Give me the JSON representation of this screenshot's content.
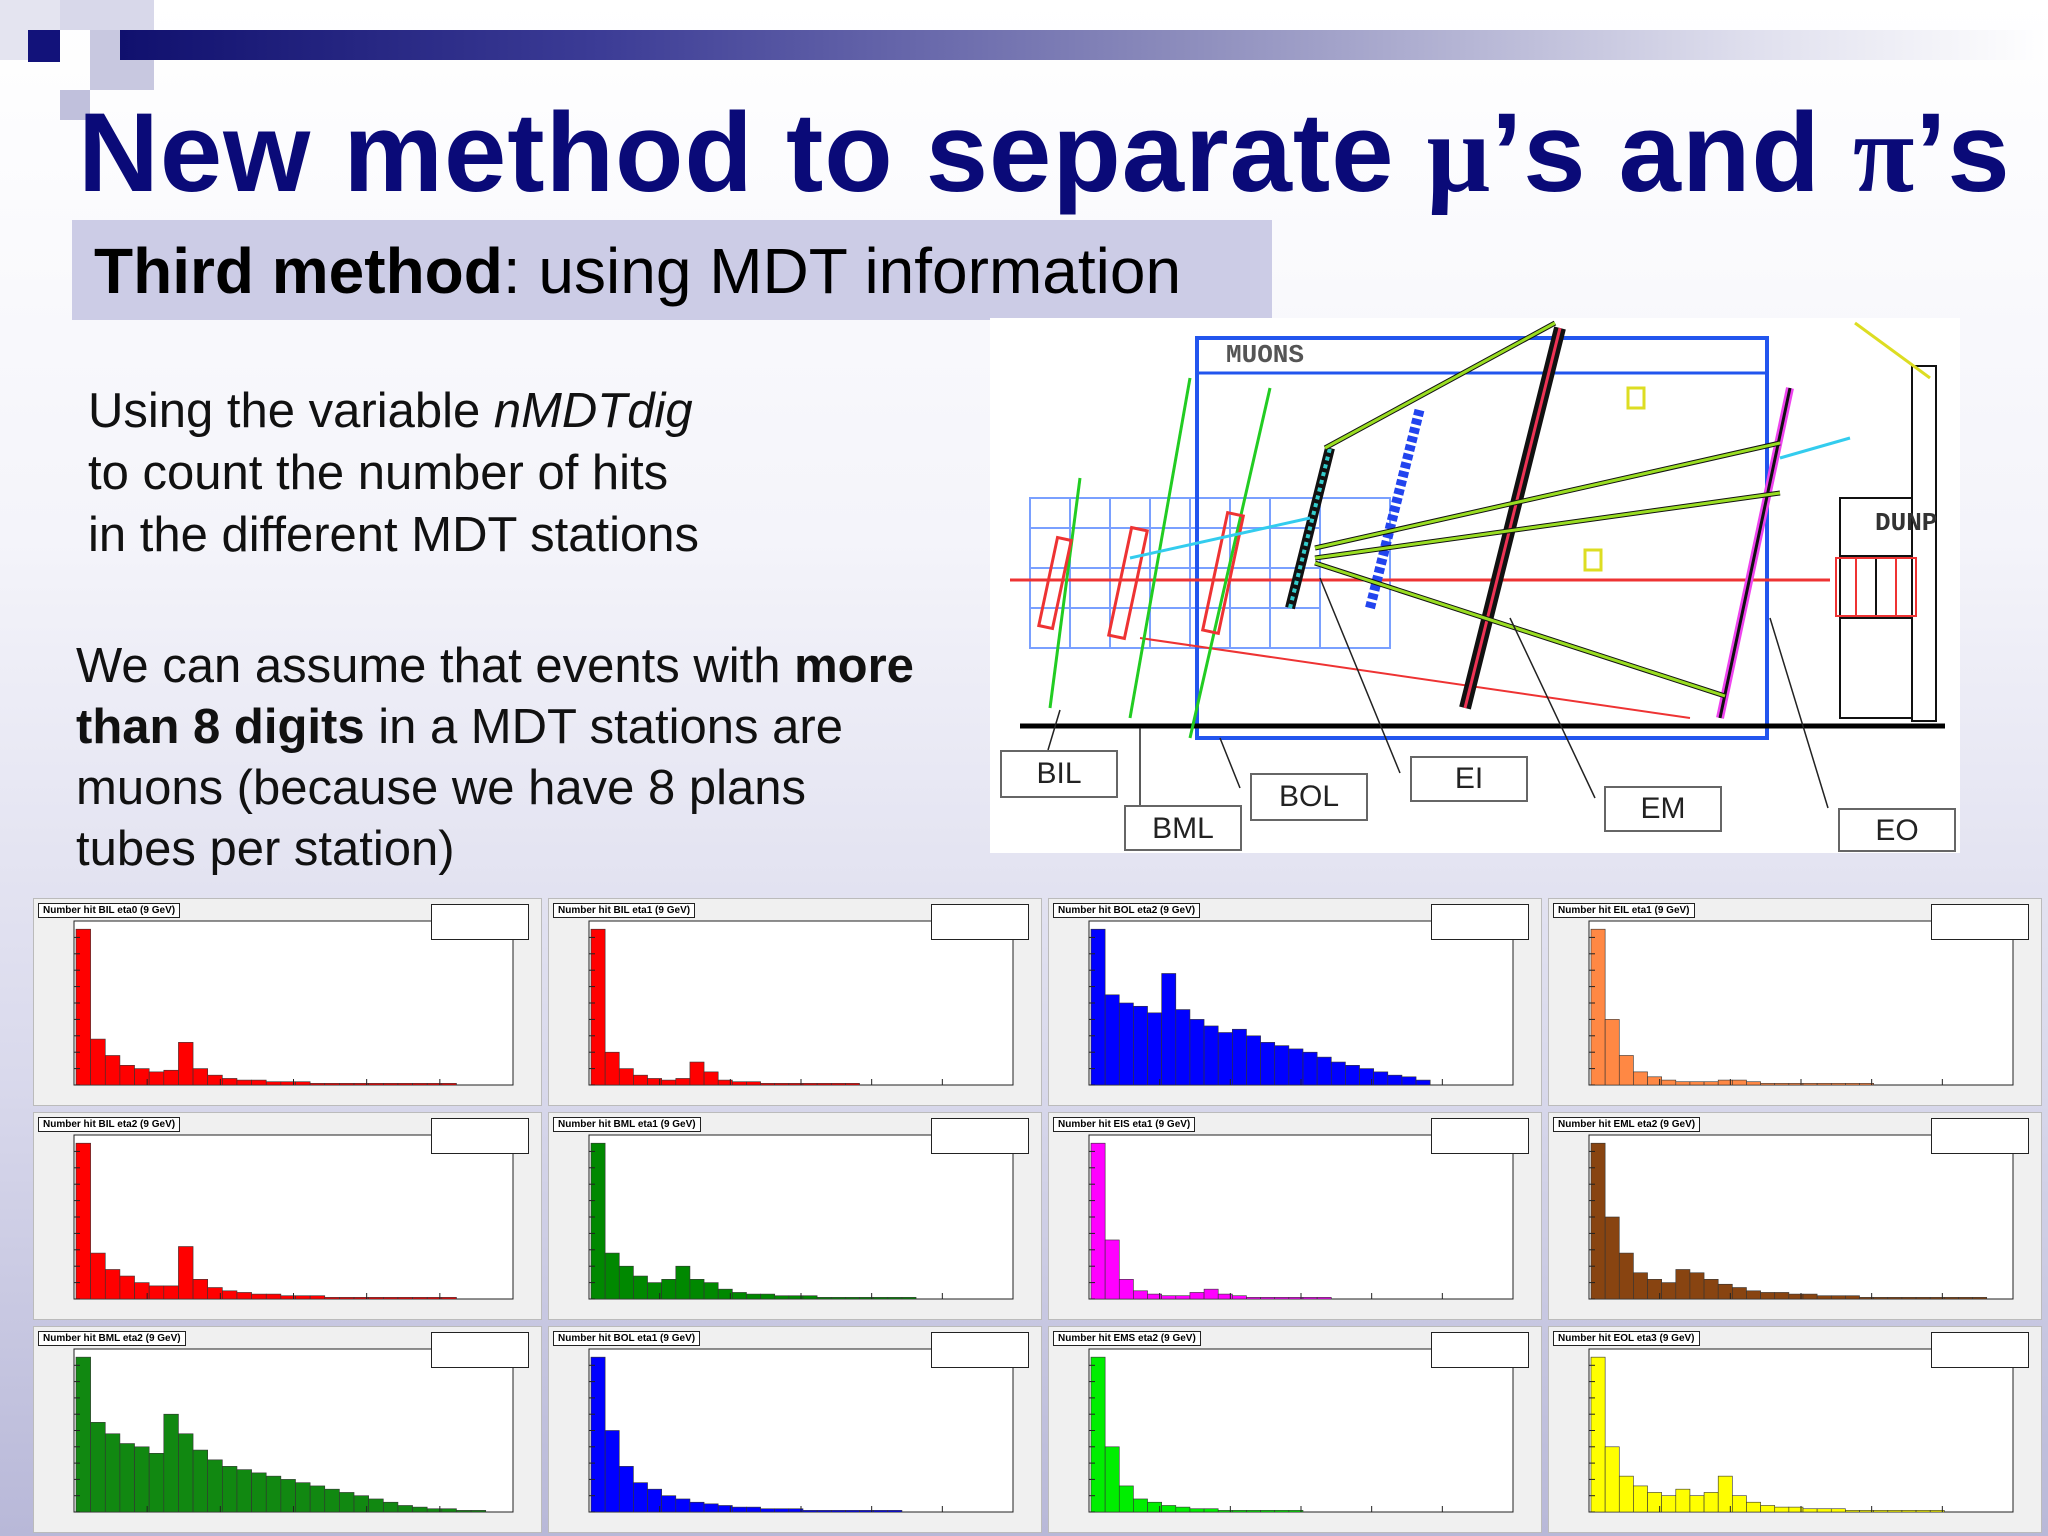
{
  "slide": {
    "title_main": "New method to separate ",
    "title_mu": "μ",
    "title_mid": "’s and ",
    "title_pi": "π",
    "title_end": "’s",
    "subtitle_bold": "Third method",
    "subtitle_rest": ": using MDT information",
    "para1_a": "Using the variable ",
    "para1_var": "nMDTdig",
    "para1_b": "to count the number of hits",
    "para1_c": "in the different MDT stations",
    "para2_a": "We can assume that events with ",
    "para2_bold1": "more",
    "para2_bold2": "than 8 digits",
    "para2_b": " in a MDT stations are",
    "para2_c": "muons (because we have 8 plans",
    "para2_d": "tubes per station)"
  },
  "diagram": {
    "muons_label": "MUONS",
    "dunp_label": "DUNP",
    "labels": [
      "BIL",
      "BML",
      "BOL",
      "EI",
      "EM",
      "EO"
    ]
  },
  "histograms": [
    {
      "title": "Number hit BIL eta0 (9 GeV)",
      "color": "#ff0000",
      "values": [
        95,
        28,
        18,
        12,
        10,
        8,
        9,
        26,
        10,
        6,
        4,
        3,
        3,
        2,
        2,
        2,
        1,
        1,
        1,
        1,
        1,
        1,
        1,
        1,
        1,
        1,
        0,
        0,
        0,
        0
      ]
    },
    {
      "title": "Number hit BIL eta1 (9 GeV)",
      "color": "#ff0000",
      "values": [
        95,
        20,
        10,
        6,
        4,
        3,
        4,
        14,
        8,
        3,
        2,
        2,
        1,
        1,
        1,
        1,
        1,
        1,
        1,
        0,
        0,
        0,
        0,
        0,
        0,
        0,
        0,
        0,
        0,
        0
      ]
    },
    {
      "title": "Number hit BOL eta2 (9 GeV)",
      "color": "#0000ff",
      "values": [
        95,
        55,
        50,
        48,
        44,
        68,
        46,
        40,
        36,
        32,
        34,
        30,
        26,
        24,
        22,
        20,
        17,
        14,
        12,
        10,
        8,
        6,
        5,
        3
      ]
    },
    {
      "title": "Number hit EIL eta1 (9 GeV)",
      "color": "#ff8844",
      "values": [
        95,
        40,
        18,
        8,
        5,
        3,
        2,
        2,
        2,
        3,
        3,
        2,
        1,
        1,
        1,
        1,
        1,
        1,
        1,
        1,
        0,
        0,
        0,
        0,
        0,
        0
      ]
    },
    {
      "title": "Number hit BIL eta2 (9 GeV)",
      "color": "#ff0000",
      "values": [
        95,
        28,
        18,
        14,
        10,
        8,
        8,
        32,
        12,
        7,
        5,
        4,
        3,
        3,
        2,
        2,
        2,
        1,
        1,
        1,
        1,
        1,
        1,
        1,
        1,
        1,
        0,
        0,
        0,
        0
      ]
    },
    {
      "title": "Number hit BML eta1 (9 GeV)",
      "color": "#008800",
      "values": [
        95,
        28,
        20,
        14,
        10,
        12,
        20,
        12,
        10,
        6,
        4,
        3,
        3,
        2,
        2,
        2,
        1,
        1,
        1,
        1,
        1,
        1,
        1,
        0,
        0,
        0,
        0,
        0,
        0,
        0
      ]
    },
    {
      "title": "Number hit EIS eta1 (9 GeV)",
      "color": "#ff00ff",
      "values": [
        95,
        36,
        12,
        5,
        3,
        2,
        2,
        4,
        6,
        3,
        2,
        1,
        1,
        1,
        1,
        1,
        1,
        0,
        0,
        0,
        0,
        0,
        0,
        0,
        0,
        0,
        0,
        0
      ]
    },
    {
      "title": "Number hit EML eta2 (9 GeV)",
      "color": "#884411",
      "values": [
        95,
        50,
        28,
        16,
        12,
        10,
        18,
        16,
        12,
        9,
        7,
        5,
        4,
        4,
        3,
        3,
        2,
        2,
        2,
        1,
        1,
        1,
        1,
        1,
        1,
        1,
        1,
        1,
        0,
        0
      ]
    },
    {
      "title": "Number hit BML eta2 (9 GeV)",
      "color": "#118811",
      "values": [
        95,
        55,
        48,
        42,
        40,
        36,
        60,
        48,
        38,
        32,
        28,
        26,
        24,
        22,
        20,
        18,
        16,
        14,
        12,
        10,
        8,
        6,
        4,
        3,
        2,
        2,
        1,
        1,
        0,
        0
      ]
    },
    {
      "title": "Number hit BOL eta1 (9 GeV)",
      "color": "#0000ff",
      "values": [
        95,
        50,
        28,
        18,
        14,
        10,
        8,
        6,
        5,
        4,
        3,
        3,
        2,
        2,
        2,
        1,
        1,
        1,
        1,
        1,
        1,
        1,
        0,
        0,
        0,
        0,
        0,
        0,
        0,
        0
      ]
    },
    {
      "title": "Number hit EMS eta2 (9 GeV)",
      "color": "#00ee00",
      "values": [
        95,
        40,
        16,
        8,
        6,
        4,
        3,
        2,
        2,
        1,
        1,
        1,
        1,
        1,
        1,
        0,
        0,
        0,
        0,
        0,
        0,
        0,
        0,
        0,
        0,
        0,
        0,
        0
      ]
    },
    {
      "title": "Number hit EOL eta3 (9 GeV)",
      "color": "#ffff00",
      "values": [
        95,
        40,
        22,
        16,
        12,
        10,
        14,
        10,
        12,
        22,
        10,
        6,
        4,
        3,
        3,
        2,
        2,
        2,
        1,
        1,
        1,
        1,
        1,
        1,
        1,
        0,
        0,
        0,
        0,
        0
      ]
    }
  ]
}
